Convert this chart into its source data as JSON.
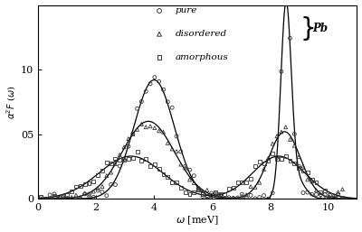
{
  "title": "",
  "xlabel": "ω [meV]",
  "ylabel": "α²F (ω)",
  "xlim": [
    0,
    11
  ],
  "ylim": [
    0,
    1.5
  ],
  "yticks": [
    0,
    0.5,
    1.0
  ],
  "ytick_labels": [
    "0",
    "05",
    "10"
  ],
  "xticks": [
    0,
    2,
    4,
    6,
    8,
    10
  ],
  "legend_entries": [
    "pure",
    "disordered",
    "amorphous"
  ],
  "legend_markers": [
    "o",
    "^",
    "s"
  ],
  "bg_color": "#ffffff",
  "line_color": "#000000",
  "scatter_color": "#555555"
}
